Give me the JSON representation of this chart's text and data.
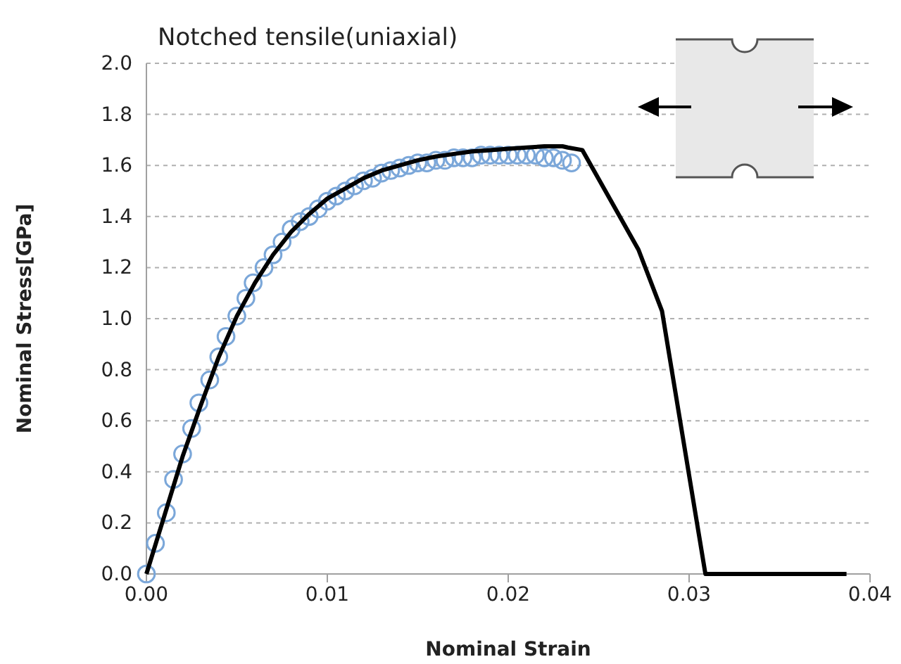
{
  "chart_data": {
    "type": "line",
    "title": "Notched tensile(uniaxial)",
    "xlabel": "Nominal Strain",
    "ylabel": "Nominal Stress[GPa]",
    "xlim": [
      0,
      0.04
    ],
    "xticks": [
      {
        "value": 0,
        "label": "0.00"
      },
      0.01,
      0.02,
      0.03,
      0.04
    ],
    "ylim": [
      0,
      2.0
    ],
    "yticks": [
      {
        "value": 0,
        "label": "0.0"
      },
      0.2,
      0.4,
      0.6,
      0.8,
      {
        "value": 1,
        "label": "1.0"
      },
      1.2,
      1.4,
      1.6,
      1.8,
      {
        "value": 2,
        "label": "2.0"
      }
    ],
    "grid": "y",
    "series": [
      {
        "type": "scatter",
        "marker": "circle",
        "color": "#7ba7d9",
        "x": [
          0,
          0.0005,
          0.0011,
          0.0015,
          0.002,
          0.0025,
          0.0029,
          0.0035,
          0.004,
          0.0044,
          0.005,
          0.0055,
          0.0059,
          0.0065,
          0.007,
          0.0075,
          0.008,
          0.0085,
          0.009,
          0.0095,
          0.01,
          0.0105,
          0.011,
          0.0115,
          0.012,
          0.0125,
          0.013,
          0.0135,
          0.014,
          0.0145,
          0.015,
          0.0155,
          0.016,
          0.0165,
          0.017,
          0.0175,
          0.018,
          0.0185,
          0.019,
          0.0195,
          0.02,
          0.0205,
          0.021,
          0.0215,
          0.022,
          0.0225,
          0.023,
          0.0235
        ],
        "values": [
          0,
          0.12,
          0.24,
          0.37,
          0.47,
          0.57,
          0.67,
          0.76,
          0.85,
          0.93,
          1.01,
          1.08,
          1.14,
          1.2,
          1.25,
          1.3,
          1.35,
          1.38,
          1.4,
          1.43,
          1.46,
          1.48,
          1.5,
          1.52,
          1.54,
          1.55,
          1.57,
          1.58,
          1.59,
          1.6,
          1.61,
          1.61,
          1.62,
          1.62,
          1.63,
          1.63,
          1.63,
          1.64,
          1.64,
          1.64,
          1.64,
          1.64,
          1.64,
          1.64,
          1.63,
          1.63,
          1.62,
          1.61
        ]
      },
      {
        "marker": "none",
        "line_style": "solid",
        "color": "#000000",
        "x": [
          0,
          0.001,
          0.002,
          0.003,
          0.004,
          0.005,
          0.006,
          0.007,
          0.008,
          0.009,
          0.01,
          0.011,
          0.012,
          0.013,
          0.014,
          0.015,
          0.016,
          0.017,
          0.018,
          0.019,
          0.02,
          0.021,
          0.022,
          0.023,
          0.0233,
          0.0241,
          0.0272,
          0.0285,
          0.0309,
          0.0387
        ],
        "values": [
          0,
          0.23,
          0.46,
          0.66,
          0.85,
          1.01,
          1.14,
          1.25,
          1.34,
          1.41,
          1.47,
          1.51,
          1.55,
          1.58,
          1.6,
          1.62,
          1.635,
          1.645,
          1.655,
          1.66,
          1.665,
          1.67,
          1.675,
          1.675,
          1.67,
          1.66,
          1.27,
          1.03,
          0,
          0
        ]
      }
    ]
  }
}
